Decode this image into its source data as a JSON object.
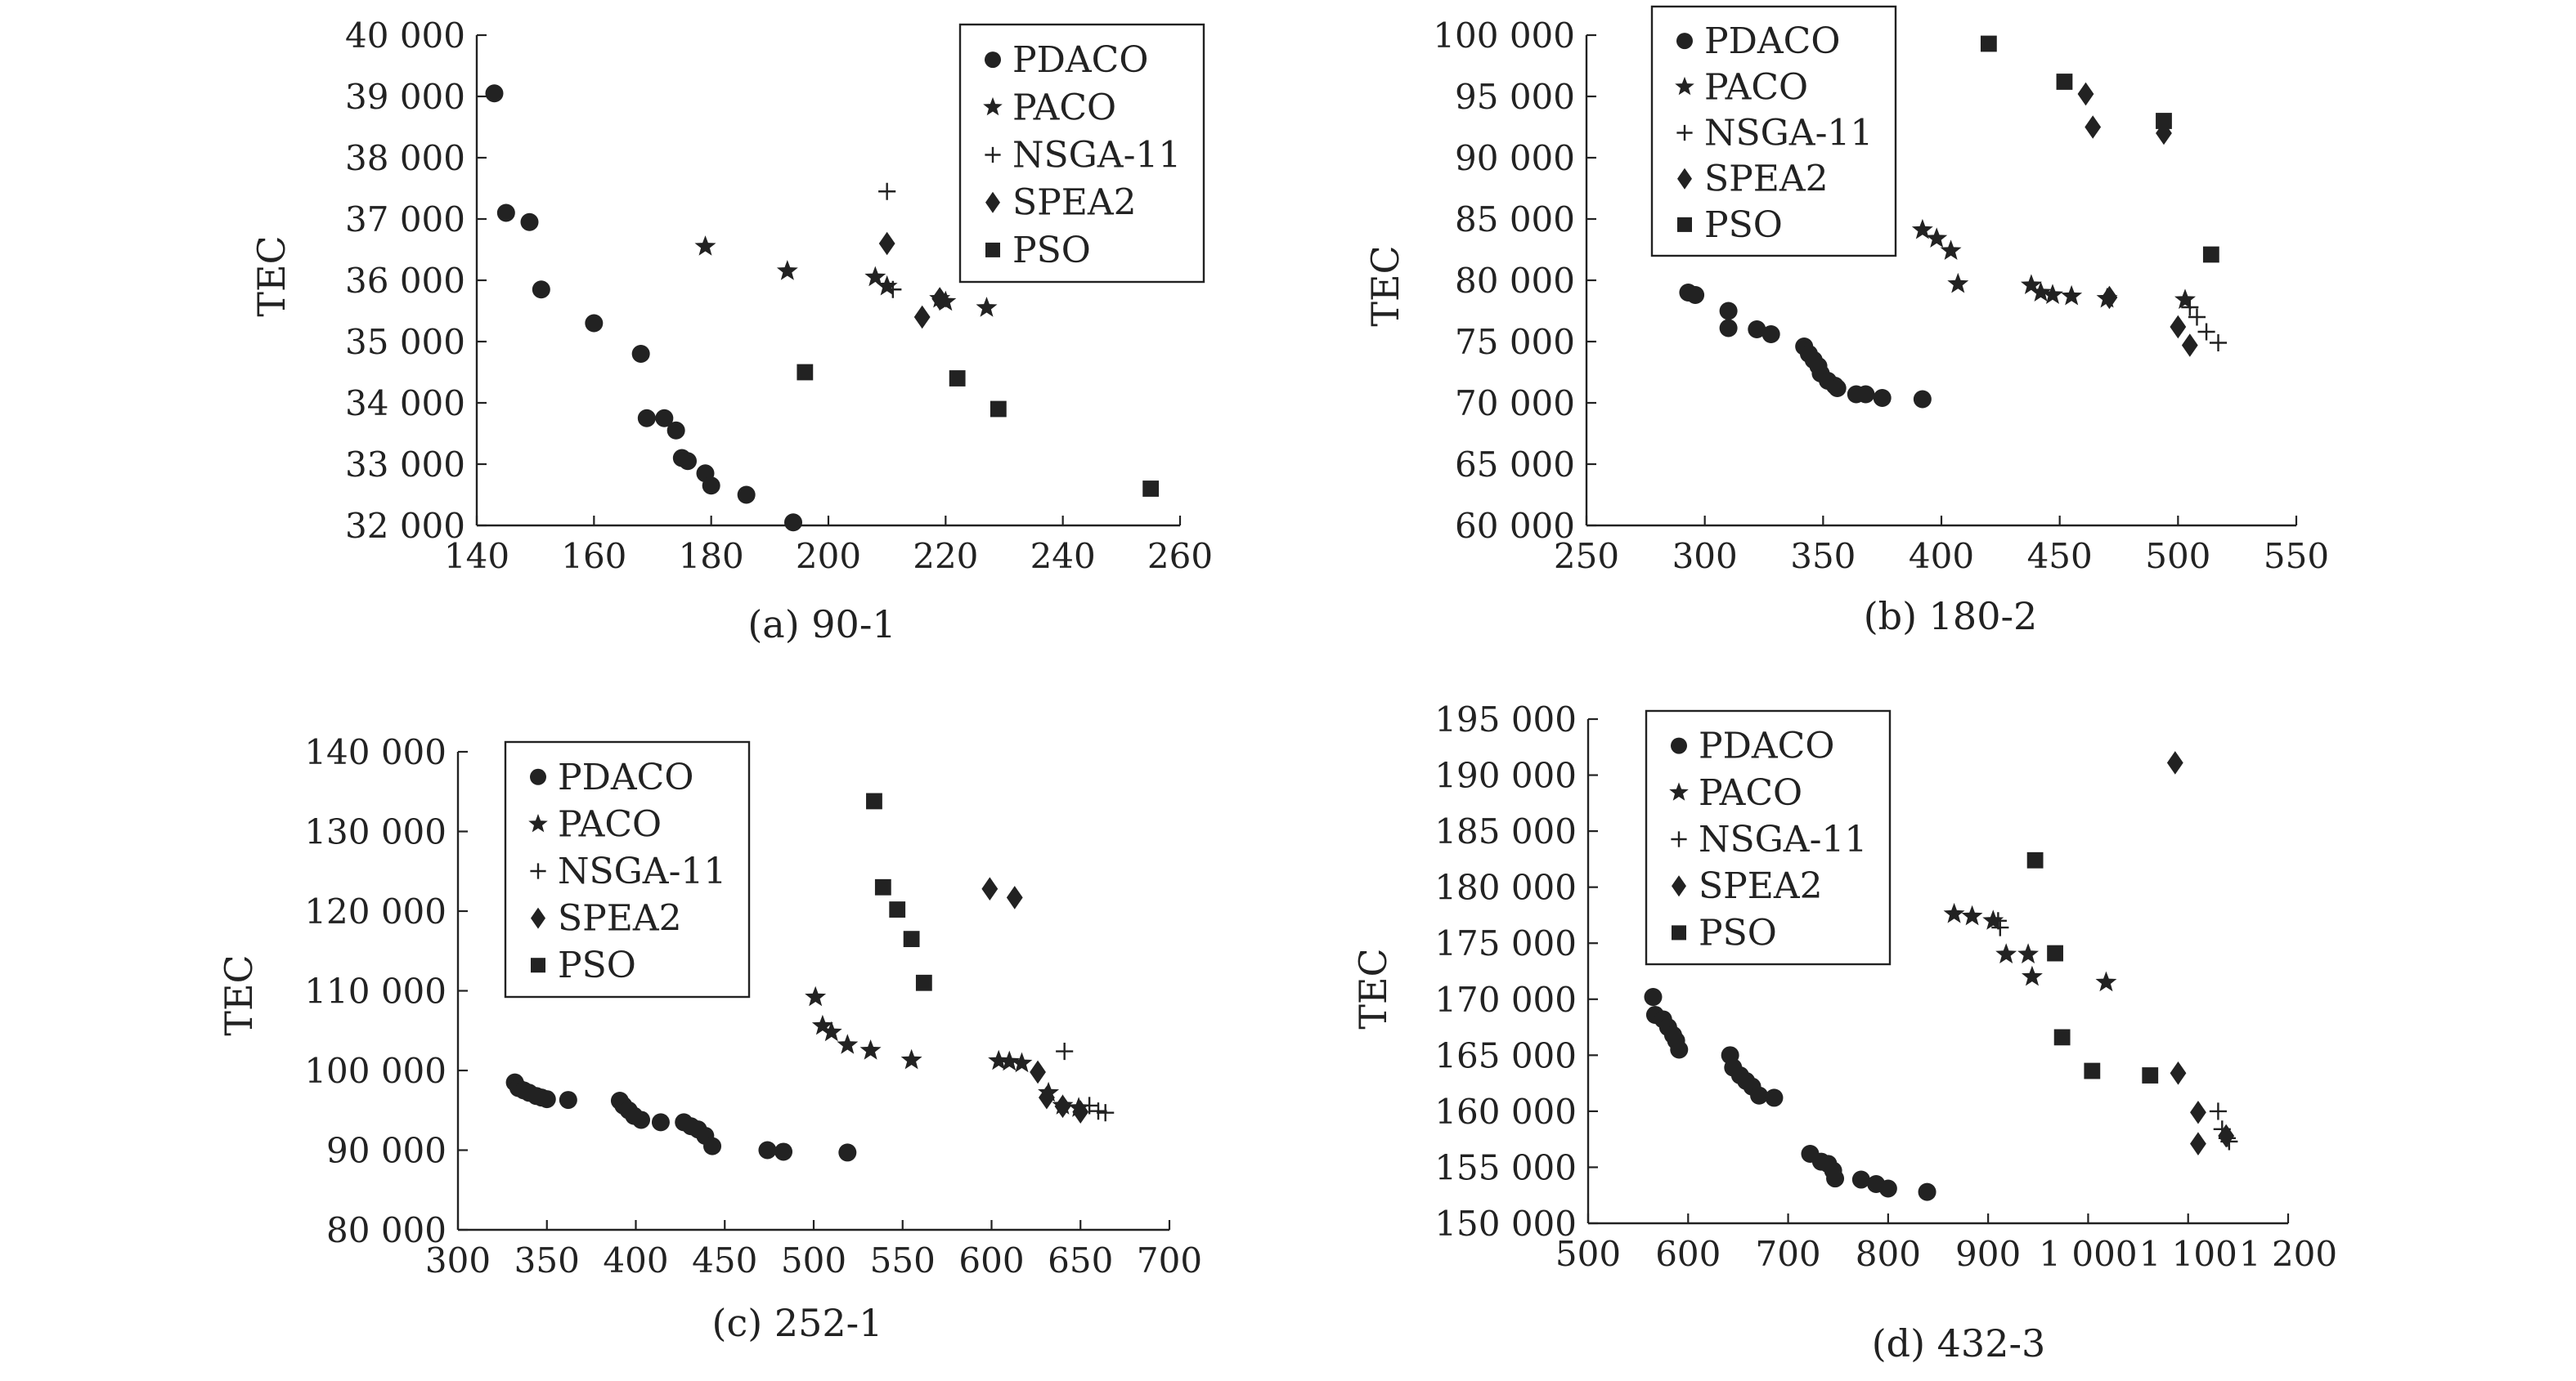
{
  "chart_data": [
    {
      "type": "scatter",
      "caption": "(a) 90-1",
      "ylabel": "TEC",
      "xlabel": "",
      "xlim": [
        140,
        260
      ],
      "ylim": [
        32000,
        40000
      ],
      "xticks": [
        140,
        160,
        180,
        200,
        220,
        240,
        260
      ],
      "xtick_labels": [
        "140",
        "160",
        "180",
        "200",
        "220",
        "240",
        "260"
      ],
      "yticks": [
        32000,
        33000,
        34000,
        35000,
        36000,
        37000,
        38000,
        39000,
        40000
      ],
      "ytick_labels": [
        "32 000",
        "33 000",
        "34 000",
        "35 000",
        "36 000",
        "37 000",
        "38 000",
        "39 000",
        "40 000"
      ],
      "legend_position": "top-right",
      "series": [
        {
          "name": "PDACO",
          "marker": "circle",
          "points": [
            [
              143,
              39050
            ],
            [
              145,
              37100
            ],
            [
              149,
              36950
            ],
            [
              151,
              35850
            ],
            [
              160,
              35300
            ],
            [
              168,
              34800
            ],
            [
              169,
              33750
            ],
            [
              172,
              33750
            ],
            [
              174,
              33550
            ],
            [
              175,
              33100
            ],
            [
              176,
              33050
            ],
            [
              179,
              32850
            ],
            [
              180,
              32650
            ],
            [
              186,
              32500
            ],
            [
              194,
              32050
            ]
          ]
        },
        {
          "name": "PACO",
          "marker": "star",
          "points": [
            [
              179,
              36550
            ],
            [
              193,
              36150
            ],
            [
              208,
              36050
            ],
            [
              210,
              35900
            ],
            [
              219,
              35700
            ],
            [
              220,
              35650
            ],
            [
              227,
              35550
            ]
          ]
        },
        {
          "name": "NSGA-11",
          "marker": "plus",
          "points": [
            [
              210,
              37450
            ],
            [
              211,
              35850
            ],
            [
              179,
              32850
            ]
          ]
        },
        {
          "name": "SPEA2",
          "marker": "diamond",
          "points": [
            [
              210,
              36600
            ],
            [
              216,
              35400
            ],
            [
              219,
              35700
            ]
          ]
        },
        {
          "name": "PSO",
          "marker": "square",
          "points": [
            [
              196,
              34500
            ],
            [
              222,
              34400
            ],
            [
              229,
              33900
            ],
            [
              255,
              32600
            ]
          ]
        }
      ]
    },
    {
      "type": "scatter",
      "caption": "(b) 180-2",
      "ylabel": "TEC",
      "xlabel": "",
      "xlim": [
        250,
        550
      ],
      "ylim": [
        60000,
        100000
      ],
      "xticks": [
        250,
        300,
        350,
        400,
        450,
        500,
        550
      ],
      "xtick_labels": [
        "250",
        "300",
        "350",
        "400",
        "450",
        "500",
        "550"
      ],
      "yticks": [
        60000,
        65000,
        70000,
        75000,
        80000,
        85000,
        90000,
        95000,
        100000
      ],
      "ytick_labels": [
        "60 000",
        "65 000",
        "70 000",
        "75 000",
        "80 000",
        "85 000",
        "90 000",
        "95 000",
        "100 000"
      ],
      "legend_position": "top-left",
      "series": [
        {
          "name": "PDACO",
          "marker": "circle",
          "points": [
            [
              293,
              79000
            ],
            [
              296,
              78800
            ],
            [
              310,
              77500
            ],
            [
              310,
              76100
            ],
            [
              322,
              76000
            ],
            [
              328,
              75600
            ],
            [
              342,
              74600
            ],
            [
              344,
              74000
            ],
            [
              346,
              73500
            ],
            [
              348,
              73000
            ],
            [
              349,
              72400
            ],
            [
              352,
              71800
            ],
            [
              355,
              71400
            ],
            [
              356,
              71200
            ],
            [
              364,
              70700
            ],
            [
              368,
              70700
            ],
            [
              375,
              70400
            ],
            [
              392,
              70300
            ]
          ]
        },
        {
          "name": "PACO",
          "marker": "star",
          "points": [
            [
              392,
              84100
            ],
            [
              398,
              83400
            ],
            [
              404,
              82400
            ],
            [
              407,
              79700
            ],
            [
              438,
              79600
            ],
            [
              442,
              79000
            ],
            [
              447,
              78800
            ],
            [
              455,
              78700
            ],
            [
              470,
              78500
            ],
            [
              503,
              78400
            ]
          ]
        },
        {
          "name": "NSGA-11",
          "marker": "plus",
          "points": [
            [
              505,
              77800
            ],
            [
              508,
              77000
            ],
            [
              512,
              75800
            ],
            [
              517,
              74900
            ]
          ]
        },
        {
          "name": "SPEA2",
          "marker": "diamond",
          "points": [
            [
              461,
              95200
            ],
            [
              464,
              92500
            ],
            [
              494,
              92000
            ],
            [
              471,
              78600
            ],
            [
              500,
              76200
            ],
            [
              505,
              74700
            ]
          ]
        },
        {
          "name": "PSO",
          "marker": "square",
          "points": [
            [
              420,
              99300
            ],
            [
              452,
              96200
            ],
            [
              494,
              93000
            ],
            [
              514,
              82100
            ]
          ]
        }
      ]
    },
    {
      "type": "scatter",
      "caption": "(c) 252-1",
      "ylabel": "TEC",
      "xlabel": "",
      "xlim": [
        300,
        700
      ],
      "ylim": [
        80000,
        140000
      ],
      "xticks": [
        300,
        350,
        400,
        450,
        500,
        550,
        600,
        650,
        700
      ],
      "xtick_labels": [
        "300",
        "350",
        "400",
        "450",
        "500",
        "550",
        "600",
        "650",
        "700"
      ],
      "yticks": [
        80000,
        90000,
        100000,
        110000,
        120000,
        130000,
        140000
      ],
      "ytick_labels": [
        "80 000",
        "90 000",
        "100 000",
        "110 000",
        "120 000",
        "130 000",
        "140 000"
      ],
      "legend_position": "top-left",
      "series": [
        {
          "name": "PDACO",
          "marker": "circle",
          "points": [
            [
              332,
              98500
            ],
            [
              334,
              97800
            ],
            [
              337,
              97500
            ],
            [
              340,
              97200
            ],
            [
              344,
              96800
            ],
            [
              347,
              96600
            ],
            [
              350,
              96400
            ],
            [
              362,
              96300
            ],
            [
              391,
              96200
            ],
            [
              393,
              95600
            ],
            [
              396,
              95000
            ],
            [
              399,
              94300
            ],
            [
              403,
              93800
            ],
            [
              414,
              93500
            ],
            [
              427,
              93500
            ],
            [
              431,
              93000
            ],
            [
              435,
              92600
            ],
            [
              439,
              91800
            ],
            [
              443,
              90500
            ],
            [
              474,
              90000
            ],
            [
              483,
              89800
            ],
            [
              519,
              89700
            ]
          ]
        },
        {
          "name": "PACO",
          "marker": "star",
          "points": [
            [
              501,
              109200
            ],
            [
              505,
              105600
            ],
            [
              510,
              104800
            ],
            [
              519,
              103200
            ],
            [
              532,
              102500
            ],
            [
              555,
              101300
            ],
            [
              604,
              101200
            ],
            [
              610,
              101100
            ],
            [
              617,
              100900
            ],
            [
              632,
              97200
            ],
            [
              640,
              95600
            ],
            [
              649,
              95300
            ]
          ]
        },
        {
          "name": "NSGA-11",
          "marker": "plus",
          "points": [
            [
              641,
              102400
            ],
            [
              655,
              95600
            ],
            [
              660,
              94900
            ],
            [
              664,
              94700
            ]
          ]
        },
        {
          "name": "SPEA2",
          "marker": "diamond",
          "points": [
            [
              599,
              122800
            ],
            [
              613,
              121700
            ],
            [
              626,
              99800
            ],
            [
              631,
              96600
            ],
            [
              640,
              95500
            ],
            [
              650,
              94800
            ]
          ]
        },
        {
          "name": "PSO",
          "marker": "square",
          "points": [
            [
              534,
              133800
            ],
            [
              539,
              123000
            ],
            [
              547,
              120200
            ],
            [
              555,
              116500
            ],
            [
              562,
              111000
            ]
          ]
        }
      ]
    },
    {
      "type": "scatter",
      "caption": "(d) 432-3",
      "ylabel": "TEC",
      "xlabel": "",
      "xlim": [
        500,
        1200
      ],
      "ylim": [
        150000,
        195000
      ],
      "xticks": [
        500,
        600,
        700,
        800,
        900,
        1000,
        1100,
        1200
      ],
      "xtick_labels": [
        "500",
        "600",
        "700",
        "800",
        "900",
        "1 000",
        "1 100",
        "1 200"
      ],
      "yticks": [
        150000,
        155000,
        160000,
        165000,
        170000,
        175000,
        180000,
        185000,
        190000,
        195000
      ],
      "ytick_labels": [
        "150 000",
        "155 000",
        "160 000",
        "165 000",
        "170 000",
        "175 000",
        "180 000",
        "185 000",
        "190 000",
        "195 000"
      ],
      "legend_position": "top-left",
      "series": [
        {
          "name": "PDACO",
          "marker": "circle",
          "points": [
            [
              565,
              170200
            ],
            [
              567,
              168600
            ],
            [
              575,
              168200
            ],
            [
              580,
              167500
            ],
            [
              585,
              166800
            ],
            [
              588,
              166300
            ],
            [
              591,
              165500
            ],
            [
              642,
              165000
            ],
            [
              645,
              163900
            ],
            [
              652,
              163200
            ],
            [
              658,
              162700
            ],
            [
              664,
              162200
            ],
            [
              671,
              161400
            ],
            [
              686,
              161200
            ],
            [
              722,
              156200
            ],
            [
              733,
              155500
            ],
            [
              740,
              155300
            ],
            [
              745,
              154700
            ],
            [
              747,
              154000
            ],
            [
              773,
              153900
            ],
            [
              788,
              153500
            ],
            [
              800,
              153100
            ],
            [
              839,
              152800
            ]
          ]
        },
        {
          "name": "PACO",
          "marker": "star",
          "points": [
            [
              866,
              177600
            ],
            [
              884,
              177400
            ],
            [
              905,
              177000
            ],
            [
              918,
              174000
            ],
            [
              940,
              174000
            ],
            [
              944,
              172000
            ],
            [
              1018,
              171500
            ]
          ]
        },
        {
          "name": "NSGA-11",
          "marker": "plus",
          "points": [
            [
              910,
              177000
            ],
            [
              912,
              176400
            ],
            [
              1130,
              160000
            ],
            [
              1134,
              158400
            ],
            [
              1139,
              157600
            ],
            [
              1141,
              157300
            ]
          ]
        },
        {
          "name": "SPEA2",
          "marker": "diamond",
          "points": [
            [
              1087,
              191100
            ],
            [
              1090,
              163400
            ],
            [
              1110,
              159900
            ],
            [
              1110,
              157100
            ],
            [
              1138,
              157800
            ]
          ]
        },
        {
          "name": "PSO",
          "marker": "square",
          "points": [
            [
              947,
              182400
            ],
            [
              967,
              174100
            ],
            [
              974,
              166600
            ],
            [
              1004,
              163600
            ],
            [
              1062,
              163200
            ]
          ]
        }
      ]
    }
  ]
}
